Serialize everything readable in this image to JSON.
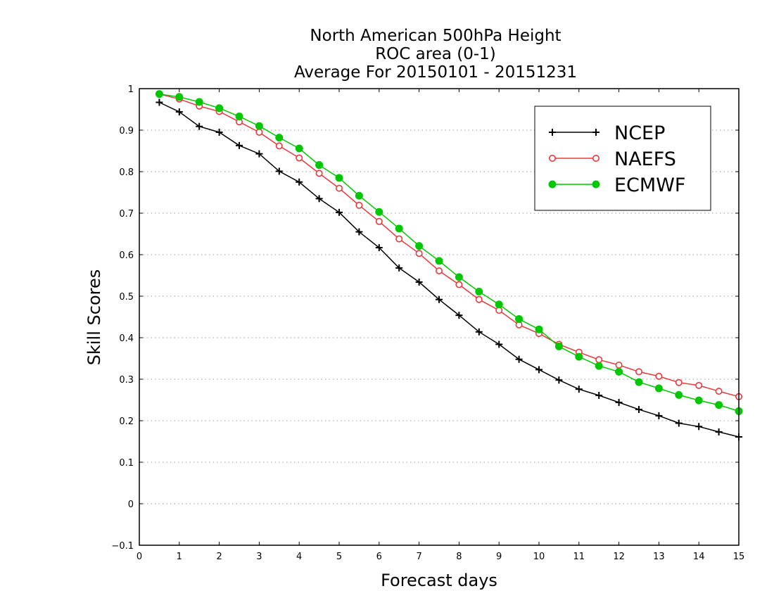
{
  "chart_data": {
    "type": "line",
    "title": [
      "North American 500hPa Height",
      "ROC area (0-1)",
      "Average For 20150101 - 20151231"
    ],
    "xlabel": "Forecast days",
    "ylabel": "Skill Scores",
    "xlim": [
      0,
      15
    ],
    "ylim": [
      -0.1,
      1
    ],
    "xticks": [
      "0",
      "1",
      "2",
      "3",
      "4",
      "5",
      "6",
      "7",
      "8",
      "9",
      "10",
      "11",
      "12",
      "13",
      "14",
      "15"
    ],
    "yticks": [
      "−0.1",
      "0",
      "0.1",
      "0.2",
      "0.3",
      "0.4",
      "0.5",
      "0.6",
      "0.7",
      "0.8",
      "0.9",
      "1"
    ],
    "ytick_values": [
      -0.1,
      0,
      0.1,
      0.2,
      0.3,
      0.4,
      0.5,
      0.6,
      0.7,
      0.8,
      0.9,
      1
    ],
    "grid": "horizontal dotted",
    "legend_position": "top-right",
    "x": [
      0.5,
      1,
      1.5,
      2,
      2.5,
      3,
      3.5,
      4,
      4.5,
      5,
      5.5,
      6,
      6.5,
      7,
      7.5,
      8,
      8.5,
      9,
      9.5,
      10,
      10.5,
      11,
      11.5,
      12,
      12.5,
      13,
      13.5,
      14,
      14.5,
      15
    ],
    "series": [
      {
        "name": "NCEP",
        "color": "#000000",
        "marker": "plus",
        "values": [
          0.967,
          0.944,
          0.909,
          0.895,
          0.863,
          0.843,
          0.801,
          0.775,
          0.735,
          0.702,
          0.655,
          0.617,
          0.568,
          0.534,
          0.492,
          0.454,
          0.414,
          0.384,
          0.348,
          0.323,
          0.298,
          0.276,
          0.261,
          0.244,
          0.227,
          0.212,
          0.194,
          0.186,
          0.173,
          0.161
        ]
      },
      {
        "name": "NAEFS",
        "color": "#e8383d",
        "marker": "open-circle",
        "values": [
          0.987,
          0.975,
          0.958,
          0.945,
          0.92,
          0.895,
          0.862,
          0.833,
          0.796,
          0.76,
          0.719,
          0.68,
          0.638,
          0.603,
          0.561,
          0.528,
          0.492,
          0.466,
          0.431,
          0.41,
          0.384,
          0.365,
          0.347,
          0.334,
          0.318,
          0.307,
          0.292,
          0.285,
          0.271,
          0.258
        ]
      },
      {
        "name": "ECMWF",
        "color": "#00c800",
        "marker": "filled-circle",
        "values": [
          0.987,
          0.98,
          0.968,
          0.953,
          0.933,
          0.91,
          0.882,
          0.856,
          0.816,
          0.785,
          0.742,
          0.703,
          0.663,
          0.621,
          0.585,
          0.546,
          0.511,
          0.48,
          0.445,
          0.42,
          0.379,
          0.354,
          0.332,
          0.318,
          0.293,
          0.278,
          0.262,
          0.249,
          0.238,
          0.223
        ]
      }
    ]
  }
}
